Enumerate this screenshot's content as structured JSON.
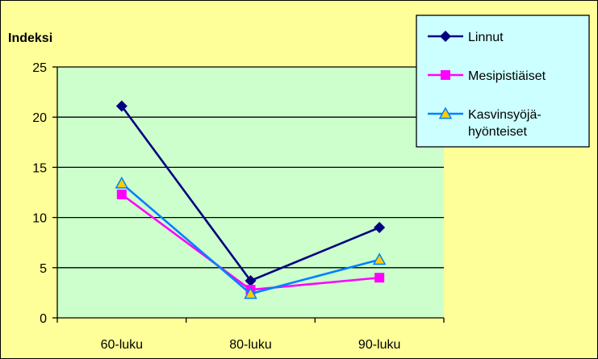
{
  "chart_data": {
    "type": "line",
    "title": "",
    "xlabel": "",
    "ylabel": "Indeksi",
    "categories": [
      "60-luku",
      "80-luku",
      "90-luku"
    ],
    "ylim": [
      0,
      25
    ],
    "yticks": [
      0,
      5,
      10,
      15,
      20,
      25
    ],
    "grid": true,
    "legend_position": "top-right",
    "plot_background": "#ccffcc",
    "page_background": "#ffff99",
    "legend_background": "#ccffff",
    "series": [
      {
        "name": "Linnut",
        "values": [
          21.1,
          3.7,
          9.0
        ],
        "color": "#000080",
        "marker": "diamond"
      },
      {
        "name": "Mesipistiäiset",
        "values": [
          12.3,
          2.8,
          4.0
        ],
        "color": "#ff00ff",
        "marker": "square"
      },
      {
        "name": "Kasvinsyöjä-hyönteiset",
        "legend_lines": [
          "Kasvinsyöjä-",
          "hyönteiset"
        ],
        "values": [
          13.4,
          2.4,
          5.8
        ],
        "color": "#0080ff",
        "marker": "triangle",
        "marker_fill": "#ffcc00"
      }
    ]
  }
}
